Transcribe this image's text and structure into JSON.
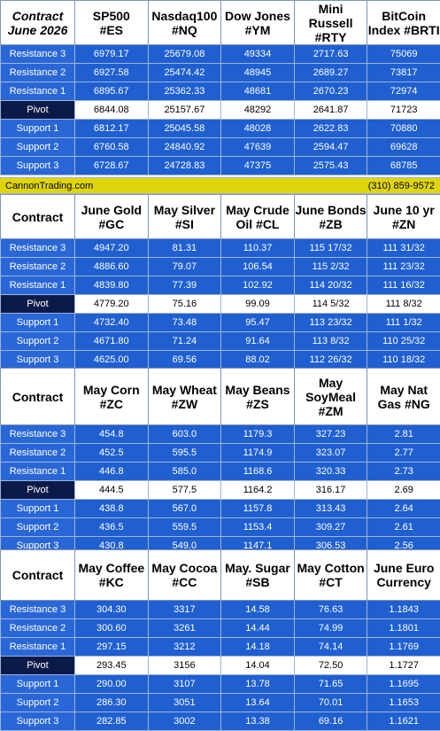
{
  "row_labels": [
    "Resistance 3",
    "Resistance 2",
    "Resistance 1",
    "Pivot",
    "Support 1",
    "Support 2",
    "Support 3"
  ],
  "banner": {
    "site": "CannonTrading.com",
    "phone": "(310) 859-9572"
  },
  "tables": [
    {
      "first_header": "Contract\nJune 2026",
      "headers": [
        "SP500\n#ES",
        "Nasdaq100\n#NQ",
        "Dow Jones\n#YM",
        "Mini Russell\n#RTY",
        "BitCoin\nIndex #BRTI"
      ],
      "values": [
        [
          "6979.17",
          "25679.08",
          "49334",
          "2717.63",
          "75069"
        ],
        [
          "6927.58",
          "25474.42",
          "48945",
          "2689.27",
          "73817"
        ],
        [
          "6895.67",
          "25362.33",
          "48681",
          "2670.23",
          "72974"
        ],
        [
          "6844.08",
          "25157.67",
          "48292",
          "2641.87",
          "71723"
        ],
        [
          "6812.17",
          "25045.58",
          "48028",
          "2622.83",
          "70880"
        ],
        [
          "6760.58",
          "24840.92",
          "47639",
          "2594.47",
          "69628"
        ],
        [
          "6728.67",
          "24728.83",
          "47375",
          "2575.43",
          "68785"
        ]
      ]
    },
    {
      "first_header": "Contract",
      "headers": [
        "June Gold\n#GC",
        "May Silver\n#SI",
        "May Crude\nOil #CL",
        "June Bonds\n#ZB",
        "June 10 yr\n#ZN"
      ],
      "values": [
        [
          "4947.20",
          "81.31",
          "110.37",
          "115 17/32",
          "111 31/32"
        ],
        [
          "4886.60",
          "79.07",
          "106.54",
          "115  2/32",
          "111 23/32"
        ],
        [
          "4839.80",
          "77.39",
          "102.92",
          "114 20/32",
          "111 16/32"
        ],
        [
          "4779.20",
          "75.16",
          "99.09",
          "114  5/32",
          "111  8/32"
        ],
        [
          "4732.40",
          "73.48",
          "95.47",
          "113 23/32",
          "111  1/32"
        ],
        [
          "4671.80",
          "71.24",
          "91.64",
          "113  8/32",
          "110 25/32"
        ],
        [
          "4625.00",
          "69.56",
          "88.02",
          "112 26/32",
          "110 18/32"
        ]
      ]
    },
    {
      "first_header": "Contract",
      "headers": [
        "May Corn\n#ZC",
        "May  Wheat\n#ZW",
        "May Beans\n#ZS",
        "May\nSoyMeal\n#ZM",
        "May Nat\nGas #NG"
      ],
      "values": [
        [
          "454.8",
          "603.0",
          "1179.3",
          "327.23",
          "2.81"
        ],
        [
          "452.5",
          "595.5",
          "1174.9",
          "323.07",
          "2.77"
        ],
        [
          "446.8",
          "585.0",
          "1168.6",
          "320.33",
          "2.73"
        ],
        [
          "444.5",
          "577.5",
          "1164.2",
          "316.17",
          "2.69"
        ],
        [
          "438.8",
          "567.0",
          "1157.8",
          "313.43",
          "2.64"
        ],
        [
          "436.5",
          "559.5",
          "1153.4",
          "309.27",
          "2.61"
        ],
        [
          "430.8",
          "549.0",
          "1147.1",
          "306.53",
          "2.56"
        ]
      ]
    },
    {
      "first_header": "Contract",
      "headers": [
        "May Coffee\n#KC",
        "May Cocoa\n#CC",
        "May. Sugar\n#SB",
        "May Cotton\n#CT",
        "June Euro\nCurrency"
      ],
      "values": [
        [
          "304.30",
          "3317",
          "14.58",
          "76.63",
          "1.1843"
        ],
        [
          "300.60",
          "3261",
          "14.44",
          "74.99",
          "1.1801"
        ],
        [
          "297.15",
          "3212",
          "14.18",
          "74.14",
          "1.1769"
        ],
        [
          "293.45",
          "3156",
          "14.04",
          "72.50",
          "1.1727"
        ],
        [
          "290.00",
          "3107",
          "13.78",
          "71.65",
          "1.1695"
        ],
        [
          "286.30",
          "3051",
          "13.64",
          "70.01",
          "1.1653"
        ],
        [
          "282.85",
          "3002",
          "13.38",
          "69.16",
          "1.1621"
        ]
      ]
    }
  ]
}
